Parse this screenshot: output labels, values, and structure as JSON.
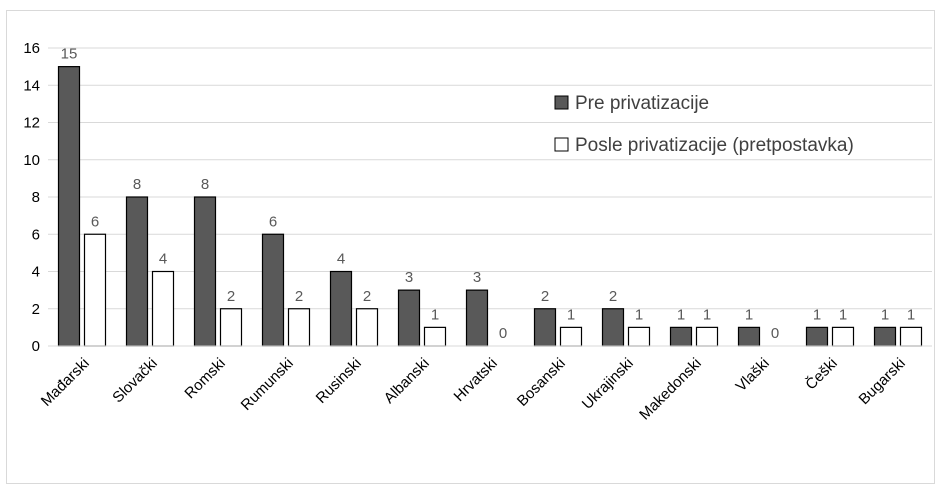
{
  "chart_data": {
    "type": "bar",
    "categories": [
      "Mađarski",
      "Slovački",
      "Romski",
      "Rumunski",
      "Rusinski",
      "Albanski",
      "Hrvatski",
      "Bosanski",
      "Ukrajinski",
      "Makedonski",
      "Vlaški",
      "Češki",
      "Bugarski"
    ],
    "series": [
      {
        "name": "Pre privatizacije",
        "values": [
          15,
          8,
          8,
          6,
          4,
          3,
          3,
          2,
          2,
          1,
          1,
          1,
          1
        ],
        "color": "#595959"
      },
      {
        "name": "Posle privatizacije (pretpostavka)",
        "values": [
          6,
          4,
          2,
          2,
          2,
          1,
          0,
          1,
          1,
          1,
          0,
          1,
          1
        ],
        "color": "#ffffff"
      }
    ],
    "ylim": [
      0,
      16
    ],
    "yticks": [
      0,
      2,
      4,
      6,
      8,
      10,
      12,
      14,
      16
    ],
    "grid": true,
    "legend_position": "right",
    "data_labels": true
  }
}
